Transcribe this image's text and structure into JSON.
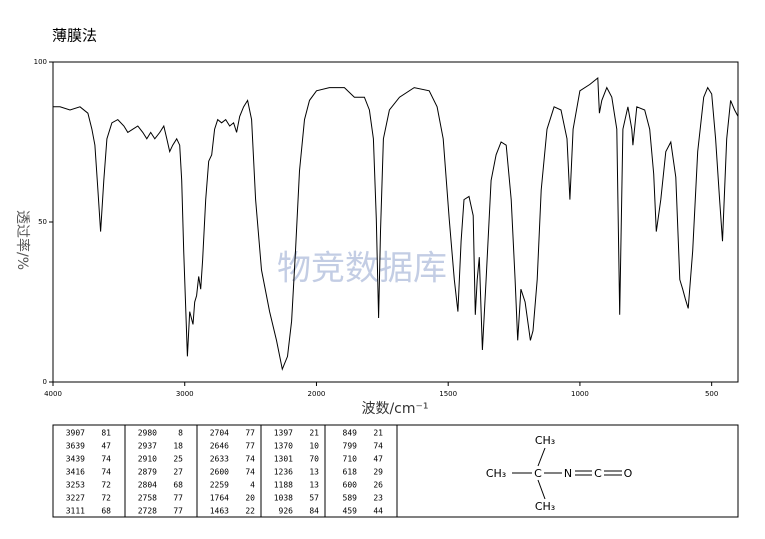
{
  "chart_data": {
    "type": "line",
    "title": "薄膜法",
    "watermark": "物竞数据库",
    "xlabel": "波数/cm⁻¹",
    "ylabel": "透过率/%",
    "xlim": [
      4000,
      400
    ],
    "xticks": [
      4000,
      3000,
      2000,
      1500,
      1000,
      500
    ],
    "xticks_evenly_spaced": true,
    "ylim": [
      0,
      100
    ],
    "yticks": [
      0,
      50,
      100
    ],
    "color": "#000000",
    "x": [
      4000,
      3947,
      3871,
      3795,
      3735,
      3705,
      3682,
      3659,
      3639,
      3614,
      3591,
      3553,
      3508,
      3462,
      3432,
      3394,
      3356,
      3318,
      3288,
      3258,
      3227,
      3189,
      3159,
      3136,
      3114,
      3091,
      3061,
      3038,
      3023,
      3008,
      2980,
      2962,
      2937,
      2924,
      2910,
      2894,
      2879,
      2864,
      2841,
      2818,
      2795,
      2773,
      2750,
      2720,
      2689,
      2659,
      2629,
      2606,
      2583,
      2553,
      2523,
      2492,
      2462,
      2417,
      2356,
      2303,
      2259,
      2220,
      2189,
      2159,
      2129,
      2091,
      2053,
      2000,
      1951,
      1894,
      1856,
      1818,
      1799,
      1784,
      1773,
      1764,
      1757,
      1746,
      1723,
      1685,
      1629,
      1572,
      1542,
      1519,
      1496,
      1477,
      1463,
      1451,
      1440,
      1421,
      1405,
      1397,
      1390,
      1382,
      1370,
      1356,
      1337,
      1318,
      1299,
      1280,
      1261,
      1246,
      1236,
      1224,
      1208,
      1188,
      1178,
      1162,
      1147,
      1125,
      1098,
      1072,
      1049,
      1038,
      1026,
      1000,
      962,
      932,
      926,
      917,
      898,
      879,
      860,
      849,
      837,
      818,
      803,
      799,
      784,
      754,
      735,
      720,
      710,
      693,
      674,
      655,
      636,
      621,
      610,
      600,
      589,
      572,
      553,
      530,
      515,
      500,
      485,
      470,
      459,
      443,
      428,
      413,
      400
    ],
    "values": [
      86,
      86,
      85,
      86,
      84,
      79,
      74,
      60,
      47,
      63,
      76,
      81,
      82,
      80,
      78,
      79,
      80,
      78,
      76,
      78,
      76,
      78,
      80,
      76,
      72,
      74,
      76,
      74,
      63,
      41,
      8,
      22,
      18,
      25,
      27,
      33,
      29,
      38,
      57,
      69,
      71,
      79,
      82,
      81,
      82,
      80,
      81,
      78,
      83,
      86,
      88,
      82,
      57,
      35,
      22,
      13,
      4,
      8,
      19,
      41,
      66,
      82,
      88,
      91,
      92,
      92,
      89,
      89,
      85,
      76,
      51,
      20,
      47,
      76,
      85,
      89,
      92,
      91,
      86,
      76,
      51,
      32,
      22,
      44,
      57,
      58,
      52,
      21,
      32,
      39,
      10,
      32,
      63,
      71,
      75,
      74,
      57,
      32,
      13,
      29,
      25,
      13,
      16,
      32,
      60,
      79,
      86,
      85,
      76,
      57,
      79,
      91,
      93,
      95,
      84,
      88,
      92,
      89,
      79,
      21,
      79,
      86,
      79,
      74,
      86,
      85,
      79,
      65,
      47,
      57,
      72,
      75,
      64,
      32,
      29,
      26,
      23,
      41,
      72,
      89,
      92,
      90,
      76,
      57,
      44,
      76,
      88,
      85,
      83
    ]
  },
  "peak_table": {
    "rows": [
      [
        [
          "3907",
          "81"
        ],
        [
          "2980",
          "8"
        ],
        [
          "2704",
          "77"
        ],
        [
          "1397",
          "21"
        ],
        [
          "849",
          "21"
        ]
      ],
      [
        [
          "3639",
          "47"
        ],
        [
          "2937",
          "18"
        ],
        [
          "2646",
          "77"
        ],
        [
          "1370",
          "10"
        ],
        [
          "799",
          "74"
        ]
      ],
      [
        [
          "3439",
          "74"
        ],
        [
          "2910",
          "25"
        ],
        [
          "2633",
          "74"
        ],
        [
          "1301",
          "70"
        ],
        [
          "710",
          "47"
        ]
      ],
      [
        [
          "3416",
          "74"
        ],
        [
          "2879",
          "27"
        ],
        [
          "2600",
          "74"
        ],
        [
          "1236",
          "13"
        ],
        [
          "618",
          "29"
        ]
      ],
      [
        [
          "3253",
          "72"
        ],
        [
          "2804",
          "68"
        ],
        [
          "2259",
          "4"
        ],
        [
          "1188",
          "13"
        ],
        [
          "600",
          "26"
        ]
      ],
      [
        [
          "3227",
          "72"
        ],
        [
          "2758",
          "77"
        ],
        [
          "1764",
          "20"
        ],
        [
          "1038",
          "57"
        ],
        [
          "589",
          "23"
        ]
      ],
      [
        [
          "3111",
          "68"
        ],
        [
          "2728",
          "77"
        ],
        [
          "1463",
          "22"
        ],
        [
          "926",
          "84"
        ],
        [
          "459",
          "44"
        ]
      ]
    ]
  },
  "structure": {
    "atoms": [
      "CH₃",
      "CH₃",
      "C",
      "N",
      "C",
      "O",
      "CH₃"
    ]
  }
}
